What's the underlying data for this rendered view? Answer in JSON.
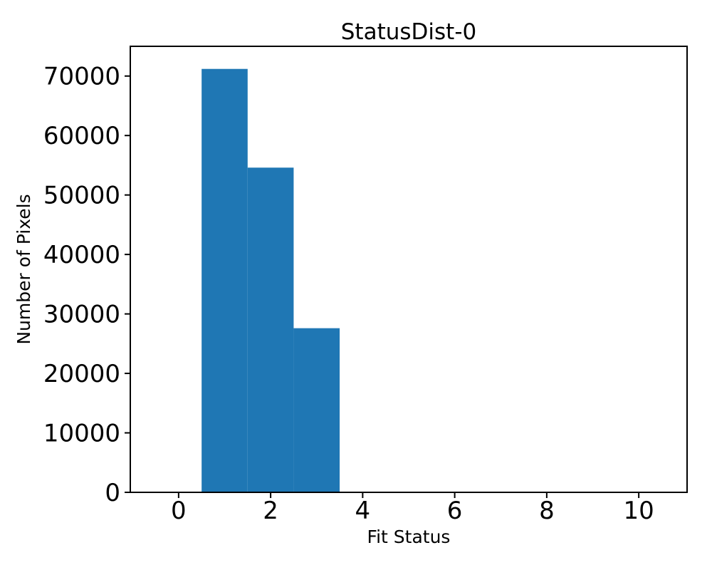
{
  "chart_data": {
    "type": "bar",
    "subtype": "histogram",
    "title": "StatusDist-0",
    "xlabel": "Fit Status",
    "ylabel": "Number of Pixels",
    "bin_edges": [
      0.5,
      1.5,
      2.5,
      3.5
    ],
    "counts": [
      71200,
      54600,
      27600
    ],
    "bin_centers": [
      1,
      2,
      3
    ],
    "xticks": [
      0,
      2,
      4,
      6,
      8,
      10
    ],
    "yticks": [
      0,
      10000,
      20000,
      30000,
      40000,
      50000,
      60000,
      70000
    ],
    "xlim": [
      -1.05,
      11.05
    ],
    "ylim": [
      0,
      75000
    ],
    "bar_color": "#1f77b4",
    "axis_color": "#000000",
    "background_color": "#ffffff",
    "grid": false,
    "legend": null
  }
}
